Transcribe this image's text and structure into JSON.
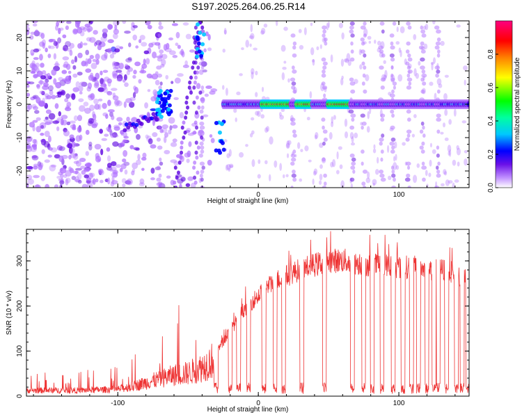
{
  "title": "S197.2025.264.06.25.R14",
  "chart_data": [
    {
      "type": "heatmap",
      "name": "spectrogram",
      "xlabel": "Height of straight line (km)",
      "ylabel": "Frequency (Hz)",
      "xlim": [
        -165,
        150
      ],
      "ylim": [
        -25,
        25
      ],
      "x_ticks": [
        -100,
        0,
        100
      ],
      "x_tick_labels": [
        "-100",
        "0",
        "100"
      ],
      "y_ticks": [
        -20,
        -10,
        0,
        10,
        20
      ],
      "y_tick_labels": [
        "-20",
        "-10",
        "0",
        "10",
        "20"
      ],
      "colorbar": {
        "label": "Normalized spectral amplitude",
        "range": [
          0,
          1
        ],
        "ticks": [
          0.0,
          0.2,
          0.4,
          0.6,
          0.8
        ],
        "tick_labels": [
          "0.0",
          "0.2",
          "0.4",
          "0.6",
          "0.8"
        ],
        "colors": [
          "#ffffff",
          "#b070ff",
          "#5a00e0",
          "#0000ff",
          "#00c8ff",
          "#00ffa0",
          "#00ff00",
          "#ffff00",
          "#ff8000",
          "#ff0000",
          "#ff0080"
        ]
      },
      "carrier_frequency": 0,
      "carrier_start_km": -25,
      "carrier_end_km": 150,
      "strong_carrier_segments": [
        [
          2,
          38
        ],
        [
          45,
          68
        ]
      ],
      "dropout_km": [
        -70,
        -40,
        25,
        47,
        67,
        75,
        88,
        96,
        107,
        117,
        128
      ]
    },
    {
      "type": "line",
      "name": "snr",
      "xlabel": "Height of straight line (km)",
      "ylabel": "SNR (10 * v/v)",
      "xlim": [
        -165,
        150
      ],
      "ylim": [
        0,
        370
      ],
      "x_ticks": [
        -100,
        0,
        100
      ],
      "x_tick_labels": [
        "-100",
        "0",
        "100"
      ],
      "y_ticks": [
        0,
        100,
        200,
        300
      ],
      "y_tick_labels": [
        "0",
        "100",
        "200",
        "300"
      ],
      "line_color": "#ee3333",
      "envelope": {
        "x": [
          -165,
          -130,
          -100,
          -90,
          -80,
          -70,
          -60,
          -50,
          -40,
          -30,
          -20,
          -10,
          0,
          10,
          20,
          30,
          40,
          50,
          60,
          70,
          80,
          90,
          100,
          110,
          120,
          130,
          140,
          150
        ],
        "y": [
          15,
          15,
          18,
          25,
          35,
          45,
          55,
          60,
          75,
          100,
          150,
          200,
          230,
          260,
          275,
          290,
          300,
          310,
          310,
          305,
          300,
          300,
          295,
          295,
          290,
          290,
          280,
          265
        ]
      },
      "dropout_km": [
        -30,
        -20,
        -14,
        -7,
        4,
        12,
        18,
        31,
        47,
        67,
        75,
        81,
        88,
        96,
        103,
        109,
        114,
        120,
        125,
        128,
        134,
        141,
        145,
        149
      ]
    }
  ]
}
